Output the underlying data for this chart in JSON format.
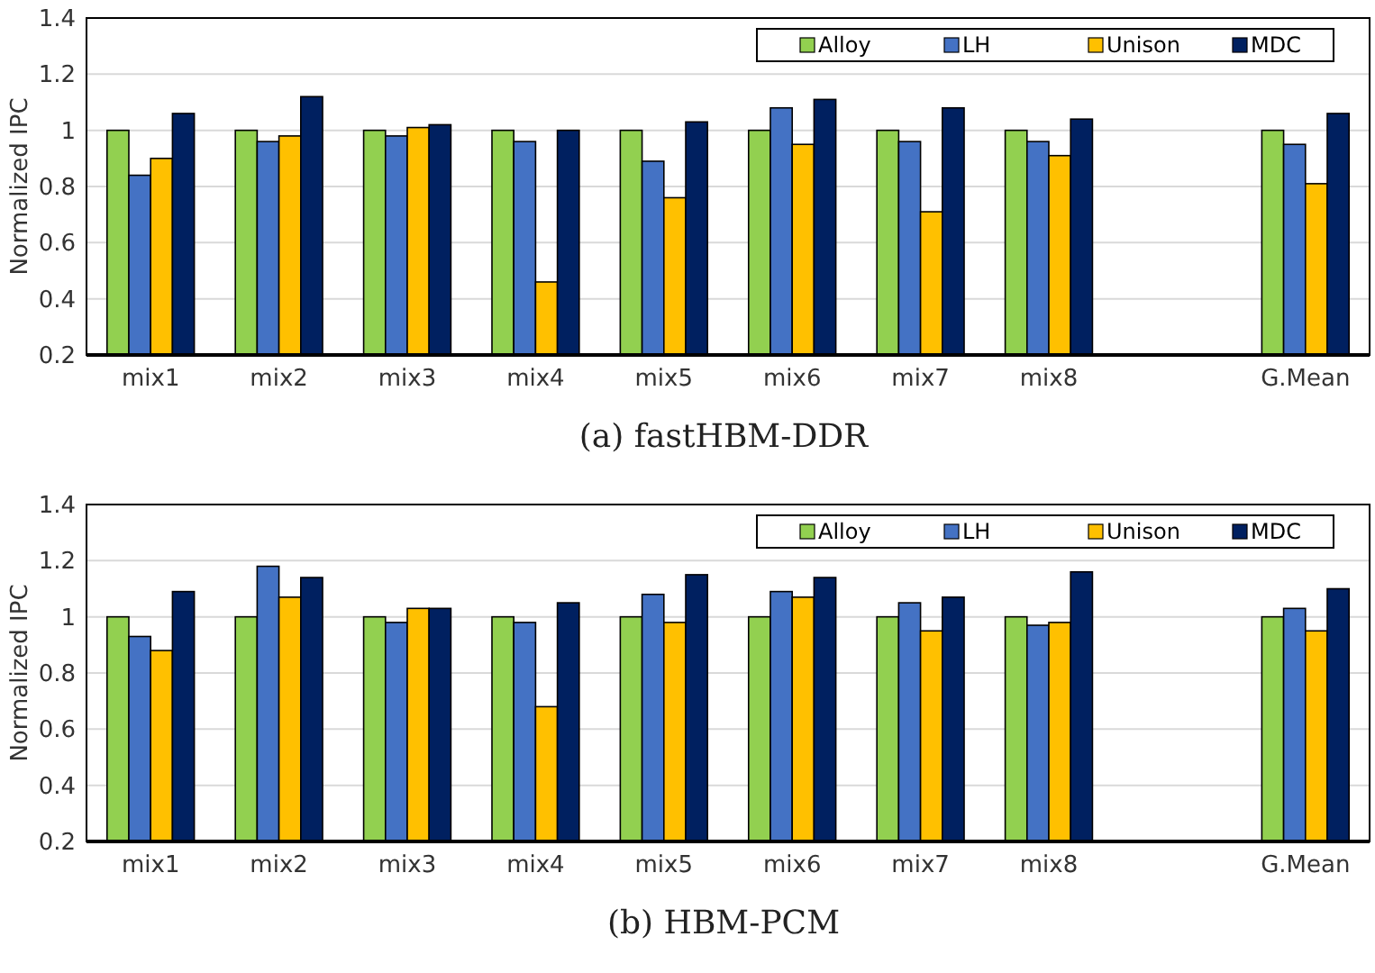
{
  "chart_data": [
    {
      "type": "bar",
      "title": "(a) fastHBM-DDR",
      "ylabel": "Normalized IPC",
      "categories": [
        "mix1",
        "mix2",
        "mix3",
        "mix4",
        "mix5",
        "mix6",
        "mix7",
        "mix8",
        null,
        "G.Mean"
      ],
      "ylim": [
        0.2,
        1.4
      ],
      "yticks": [
        0.2,
        0.4,
        0.6,
        0.8,
        1,
        1.2,
        1.4
      ],
      "grid": "y",
      "legend": "top right",
      "series": [
        {
          "name": "Alloy",
          "color": "#92d050",
          "values": [
            1,
            1,
            1,
            1,
            1,
            1,
            1,
            1,
            null,
            1
          ]
        },
        {
          "name": "LH",
          "color": "#4472c4",
          "values": [
            0.84,
            0.96,
            0.98,
            0.96,
            0.89,
            1.08,
            0.96,
            0.96,
            null,
            0.95
          ]
        },
        {
          "name": "Unison",
          "color": "#ffc000",
          "values": [
            0.9,
            0.98,
            1.01,
            0.46,
            0.76,
            0.95,
            0.71,
            0.91,
            null,
            0.81
          ]
        },
        {
          "name": "MDC",
          "color": "#002060",
          "values": [
            1.06,
            1.12,
            1.02,
            1.0,
            1.03,
            1.11,
            1.08,
            1.04,
            null,
            1.06
          ]
        }
      ]
    },
    {
      "type": "bar",
      "title": "(b) HBM-PCM",
      "ylabel": "Normalized IPC",
      "categories": [
        "mix1",
        "mix2",
        "mix3",
        "mix4",
        "mix5",
        "mix6",
        "mix7",
        "mix8",
        null,
        "G.Mean"
      ],
      "ylim": [
        0.2,
        1.4
      ],
      "yticks": [
        0.2,
        0.4,
        0.6,
        0.8,
        1,
        1.2,
        1.4
      ],
      "grid": "y",
      "legend": "top right",
      "series": [
        {
          "name": "Alloy",
          "color": "#92d050",
          "values": [
            1,
            1,
            1,
            1,
            1,
            1,
            1,
            1,
            null,
            1
          ]
        },
        {
          "name": "LH",
          "color": "#4472c4",
          "values": [
            0.93,
            1.18,
            0.98,
            0.98,
            1.08,
            1.09,
            1.05,
            0.97,
            null,
            1.03
          ]
        },
        {
          "name": "Unison",
          "color": "#ffc000",
          "values": [
            0.88,
            1.07,
            1.03,
            0.68,
            0.98,
            1.07,
            0.95,
            0.98,
            null,
            0.95
          ]
        },
        {
          "name": "MDC",
          "color": "#002060",
          "values": [
            1.09,
            1.14,
            1.03,
            1.05,
            1.15,
            1.14,
            1.07,
            1.16,
            null,
            1.1
          ]
        }
      ]
    }
  ]
}
